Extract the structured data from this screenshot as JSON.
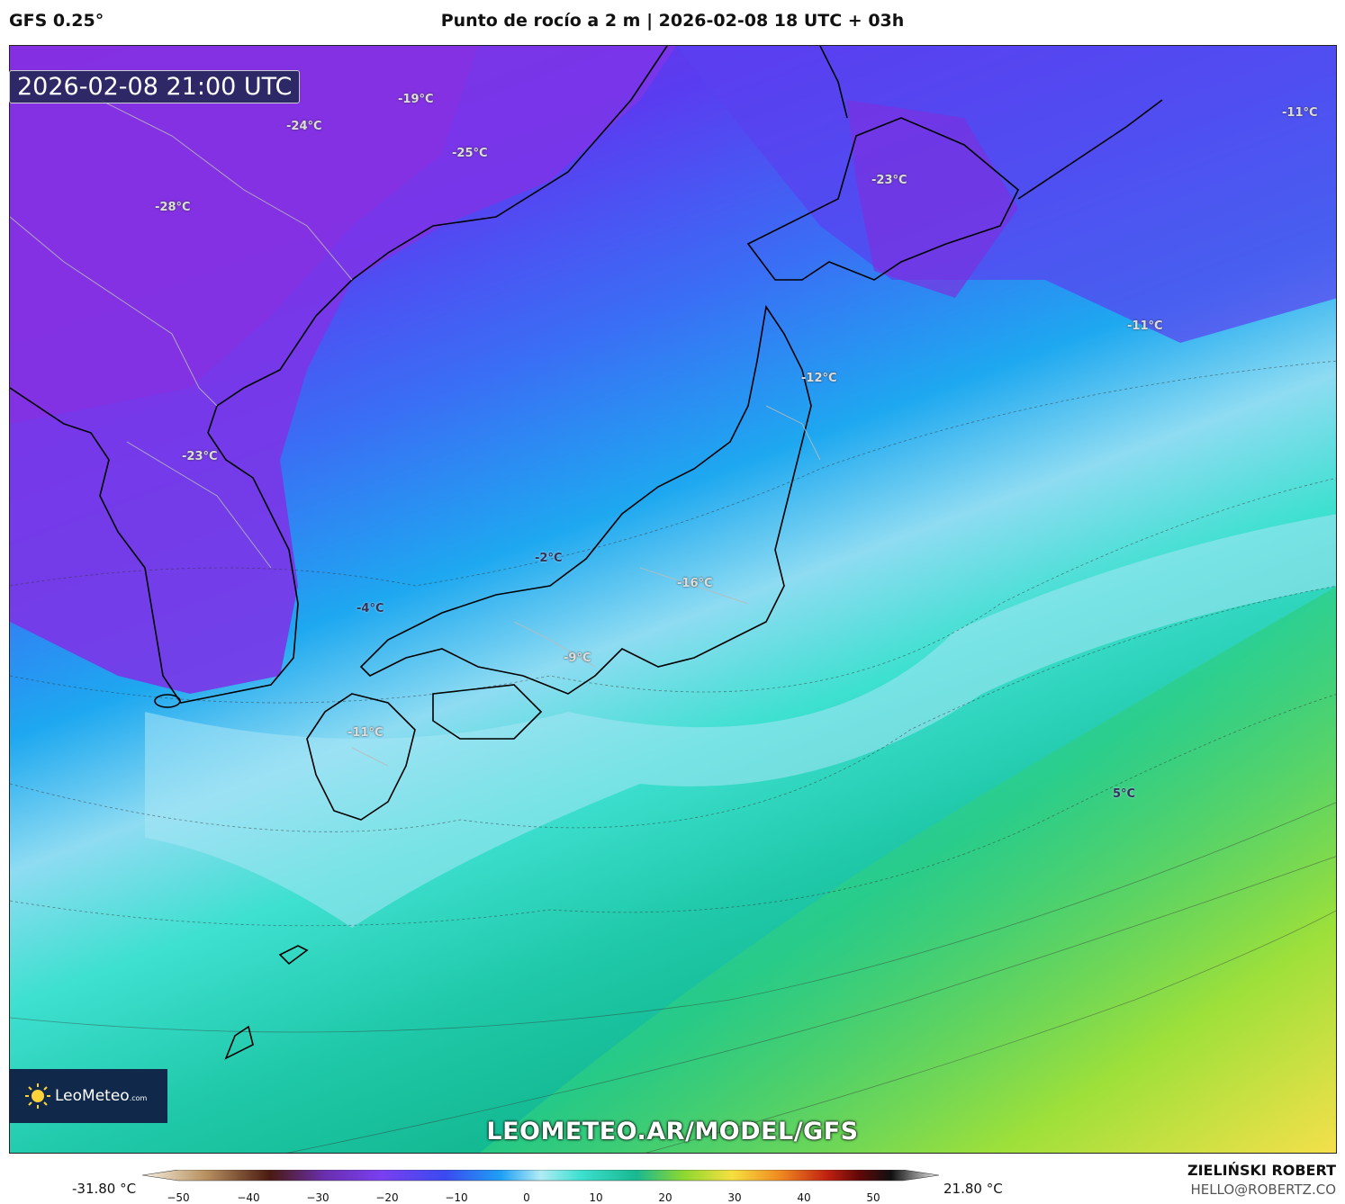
{
  "header": {
    "model": "GFS 0.25°",
    "title": "Punto de rocío a 2 m | 2026-02-08 18 UTC + 03h"
  },
  "map": {
    "valid_time": "2026-02-08 21:00 UTC",
    "labels": [
      {
        "text": "-19°C"
      },
      {
        "text": "-24°C"
      },
      {
        "text": "-25°C"
      },
      {
        "text": "-28°C"
      },
      {
        "text": "-23°C"
      },
      {
        "text": "-11°C"
      },
      {
        "text": "-11°C"
      },
      {
        "text": "-12°C"
      },
      {
        "text": "-23°C"
      },
      {
        "text": "-2°C"
      },
      {
        "text": "-16°C"
      },
      {
        "text": "-4°C"
      },
      {
        "text": "-9°C"
      },
      {
        "text": "-11°C"
      },
      {
        "text": "5°C"
      }
    ],
    "site_url": "LEOMETEO.AR/MODEL/GFS",
    "logo": {
      "name": "LeoMeteo",
      "suffix": ".com"
    }
  },
  "colorbar": {
    "min_label": "-31.80 °C",
    "max_label": "21.80 °C",
    "ticks": [
      "−50",
      "−40",
      "−30",
      "−20",
      "−10",
      "0",
      "10",
      "20",
      "30",
      "40",
      "50"
    ]
  },
  "credits": {
    "author": "ZIELIŃSKI ROBERT",
    "email": "HELLO@ROBERTZ.CO"
  }
}
